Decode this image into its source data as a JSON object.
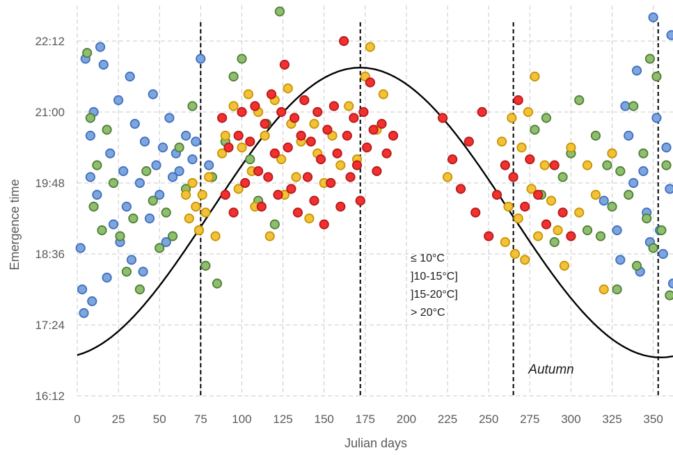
{
  "chart_data": {
    "type": "scatter",
    "title": "",
    "xlabel": "Julian days",
    "ylabel": "Emergence time",
    "xlim": [
      0,
      362
    ],
    "ylim": [
      16.2,
      22.8
    ],
    "x_ticks": [
      0,
      25,
      50,
      75,
      100,
      125,
      150,
      175,
      200,
      225,
      250,
      275,
      300,
      325,
      350
    ],
    "y_ticks": [
      {
        "value": 16.2,
        "label": "16:12"
      },
      {
        "value": 17.4,
        "label": "17:24"
      },
      {
        "value": 18.6,
        "label": "18:36"
      },
      {
        "value": 19.8,
        "label": "19:48"
      },
      {
        "value": 21.0,
        "label": "21:00"
      },
      {
        "value": 22.2,
        "label": "22:12"
      }
    ],
    "grid": true,
    "legend_position": "center",
    "series": [
      {
        "name": "≤ 10°C",
        "color": "#7ea6dc",
        "edge": "#3f6fc0",
        "points": [
          [
            2,
            18.7
          ],
          [
            3,
            18.0
          ],
          [
            4,
            17.6
          ],
          [
            5,
            21.9
          ],
          [
            8,
            19.9
          ],
          [
            8,
            20.6
          ],
          [
            9,
            17.8
          ],
          [
            10,
            21.0
          ],
          [
            12,
            19.6
          ],
          [
            14,
            22.1
          ],
          [
            16,
            21.8
          ],
          [
            18,
            18.2
          ],
          [
            20,
            20.3
          ],
          [
            22,
            19.1
          ],
          [
            25,
            21.2
          ],
          [
            26,
            18.8
          ],
          [
            28,
            20.0
          ],
          [
            30,
            19.4
          ],
          [
            32,
            21.6
          ],
          [
            33,
            18.5
          ],
          [
            35,
            20.8
          ],
          [
            38,
            19.8
          ],
          [
            40,
            18.3
          ],
          [
            41,
            20.5
          ],
          [
            44,
            19.2
          ],
          [
            46,
            21.3
          ],
          [
            48,
            20.1
          ],
          [
            50,
            19.6
          ],
          [
            52,
            20.4
          ],
          [
            54,
            18.8
          ],
          [
            56,
            20.9
          ],
          [
            58,
            19.9
          ],
          [
            60,
            20.3
          ],
          [
            62,
            20.0
          ],
          [
            66,
            20.6
          ],
          [
            70,
            20.2
          ],
          [
            72,
            20.5
          ],
          [
            75,
            21.9
          ],
          [
            80,
            20.1
          ],
          [
            320,
            19.5
          ],
          [
            325,
            20.3
          ],
          [
            328,
            19.0
          ],
          [
            330,
            18.5
          ],
          [
            333,
            21.1
          ],
          [
            335,
            20.6
          ],
          [
            338,
            19.8
          ],
          [
            340,
            21.7
          ],
          [
            342,
            18.3
          ],
          [
            344,
            20.0
          ],
          [
            346,
            19.3
          ],
          [
            348,
            18.8
          ],
          [
            350,
            22.6
          ],
          [
            352,
            20.9
          ],
          [
            354,
            19.0
          ],
          [
            356,
            18.6
          ],
          [
            358,
            20.4
          ],
          [
            360,
            19.7
          ],
          [
            361,
            22.3
          ],
          [
            362,
            18.1
          ]
        ]
      },
      {
        "name": "]10-15°C]",
        "color": "#8fbe71",
        "edge": "#4f7f33",
        "points": [
          [
            6,
            22.0
          ],
          [
            8,
            20.9
          ],
          [
            10,
            19.4
          ],
          [
            12,
            20.1
          ],
          [
            15,
            19.0
          ],
          [
            18,
            20.7
          ],
          [
            22,
            19.8
          ],
          [
            26,
            18.9
          ],
          [
            30,
            18.3
          ],
          [
            34,
            19.2
          ],
          [
            38,
            18.0
          ],
          [
            42,
            20.0
          ],
          [
            46,
            19.5
          ],
          [
            50,
            18.7
          ],
          [
            54,
            19.3
          ],
          [
            58,
            18.9
          ],
          [
            62,
            20.4
          ],
          [
            66,
            19.7
          ],
          [
            70,
            21.1
          ],
          [
            74,
            19.0
          ],
          [
            78,
            18.4
          ],
          [
            82,
            19.9
          ],
          [
            85,
            18.1
          ],
          [
            90,
            20.5
          ],
          [
            95,
            21.6
          ],
          [
            100,
            21.9
          ],
          [
            105,
            20.2
          ],
          [
            110,
            19.5
          ],
          [
            115,
            20.8
          ],
          [
            120,
            19.1
          ],
          [
            123,
            22.7
          ],
          [
            278,
            20.7
          ],
          [
            282,
            19.6
          ],
          [
            285,
            20.9
          ],
          [
            290,
            18.8
          ],
          [
            295,
            19.9
          ],
          [
            300,
            20.3
          ],
          [
            305,
            21.2
          ],
          [
            310,
            19.0
          ],
          [
            315,
            20.6
          ],
          [
            318,
            18.9
          ],
          [
            322,
            20.1
          ],
          [
            325,
            19.4
          ],
          [
            328,
            18.0
          ],
          [
            330,
            20.0
          ],
          [
            335,
            19.6
          ],
          [
            338,
            21.1
          ],
          [
            340,
            18.4
          ],
          [
            344,
            20.3
          ],
          [
            346,
            19.2
          ],
          [
            348,
            21.9
          ],
          [
            350,
            18.7
          ],
          [
            352,
            21.6
          ],
          [
            355,
            19.0
          ],
          [
            358,
            20.1
          ],
          [
            360,
            17.9
          ]
        ]
      },
      {
        "name": "]15-20°C]",
        "color": "#f2c23b",
        "edge": "#c99400",
        "points": [
          [
            66,
            19.6
          ],
          [
            68,
            19.2
          ],
          [
            70,
            19.8
          ],
          [
            72,
            19.4
          ],
          [
            74,
            19.0
          ],
          [
            76,
            19.6
          ],
          [
            78,
            19.3
          ],
          [
            80,
            19.9
          ],
          [
            84,
            18.9
          ],
          [
            88,
            20.3
          ],
          [
            90,
            20.6
          ],
          [
            95,
            21.1
          ],
          [
            98,
            19.7
          ],
          [
            100,
            20.4
          ],
          [
            104,
            21.3
          ],
          [
            106,
            20.0
          ],
          [
            108,
            19.4
          ],
          [
            110,
            21.0
          ],
          [
            114,
            20.6
          ],
          [
            117,
            18.9
          ],
          [
            120,
            21.2
          ],
          [
            124,
            20.2
          ],
          [
            126,
            19.6
          ],
          [
            128,
            21.4
          ],
          [
            130,
            20.8
          ],
          [
            133,
            19.9
          ],
          [
            136,
            20.5
          ],
          [
            138,
            21.2
          ],
          [
            141,
            19.2
          ],
          [
            144,
            20.8
          ],
          [
            146,
            20.3
          ],
          [
            150,
            19.8
          ],
          [
            155,
            20.6
          ],
          [
            160,
            20.1
          ],
          [
            165,
            21.1
          ],
          [
            170,
            20.2
          ],
          [
            175,
            21.6
          ],
          [
            178,
            22.1
          ],
          [
            182,
            20.7
          ],
          [
            186,
            21.3
          ],
          [
            225,
            19.9
          ],
          [
            258,
            20.5
          ],
          [
            260,
            18.8
          ],
          [
            262,
            19.4
          ],
          [
            264,
            20.9
          ],
          [
            266,
            18.6
          ],
          [
            268,
            19.2
          ],
          [
            270,
            20.4
          ],
          [
            272,
            18.5
          ],
          [
            274,
            21.0
          ],
          [
            276,
            19.7
          ],
          [
            278,
            21.6
          ],
          [
            280,
            18.9
          ],
          [
            284,
            20.1
          ],
          [
            288,
            19.5
          ],
          [
            292,
            19.0
          ],
          [
            296,
            18.4
          ],
          [
            300,
            20.4
          ],
          [
            305,
            19.3
          ],
          [
            310,
            20.1
          ],
          [
            315,
            19.6
          ],
          [
            320,
            18.0
          ],
          [
            325,
            20.3
          ]
        ]
      },
      {
        "name": "> 20°C",
        "color": "#f23030",
        "edge": "#b51a1a",
        "points": [
          [
            88,
            20.9
          ],
          [
            90,
            19.6
          ],
          [
            92,
            20.4
          ],
          [
            95,
            19.3
          ],
          [
            98,
            20.6
          ],
          [
            100,
            21.0
          ],
          [
            102,
            19.8
          ],
          [
            105,
            20.5
          ],
          [
            108,
            21.1
          ],
          [
            110,
            20.0
          ],
          [
            112,
            19.4
          ],
          [
            114,
            20.8
          ],
          [
            116,
            19.9
          ],
          [
            118,
            21.3
          ],
          [
            120,
            20.3
          ],
          [
            122,
            19.6
          ],
          [
            124,
            21.0
          ],
          [
            126,
            21.8
          ],
          [
            128,
            20.4
          ],
          [
            130,
            19.7
          ],
          [
            132,
            20.9
          ],
          [
            134,
            19.3
          ],
          [
            136,
            20.6
          ],
          [
            138,
            21.2
          ],
          [
            140,
            19.9
          ],
          [
            142,
            20.5
          ],
          [
            144,
            19.5
          ],
          [
            146,
            21.0
          ],
          [
            148,
            20.2
          ],
          [
            150,
            19.1
          ],
          [
            152,
            20.7
          ],
          [
            154,
            19.8
          ],
          [
            156,
            21.1
          ],
          [
            158,
            20.3
          ],
          [
            160,
            19.4
          ],
          [
            162,
            22.2
          ],
          [
            164,
            20.6
          ],
          [
            166,
            19.9
          ],
          [
            168,
            20.9
          ],
          [
            170,
            20.1
          ],
          [
            172,
            19.5
          ],
          [
            174,
            21.0
          ],
          [
            176,
            20.4
          ],
          [
            178,
            21.5
          ],
          [
            180,
            20.7
          ],
          [
            182,
            20.0
          ],
          [
            185,
            20.8
          ],
          [
            188,
            20.3
          ],
          [
            192,
            20.6
          ],
          [
            222,
            20.9
          ],
          [
            228,
            20.2
          ],
          [
            233,
            19.7
          ],
          [
            238,
            20.5
          ],
          [
            242,
            19.3
          ],
          [
            246,
            21.0
          ],
          [
            250,
            18.9
          ],
          [
            255,
            19.6
          ],
          [
            260,
            20.1
          ],
          [
            265,
            19.9
          ],
          [
            268,
            21.2
          ],
          [
            272,
            19.4
          ],
          [
            275,
            20.2
          ],
          [
            280,
            19.6
          ],
          [
            285,
            19.1
          ],
          [
            290,
            20.1
          ],
          [
            295,
            19.3
          ],
          [
            300,
            18.9
          ]
        ]
      }
    ],
    "curve": {
      "name": "",
      "color": "#000000",
      "mean": 19.3,
      "amplitude": 2.45,
      "peak_day": 172
    },
    "reference_lines": [
      75,
      172,
      265,
      353
    ],
    "annotations": [
      {
        "text": "Autumn",
        "x": 288,
        "y": 16.65
      }
    ]
  }
}
